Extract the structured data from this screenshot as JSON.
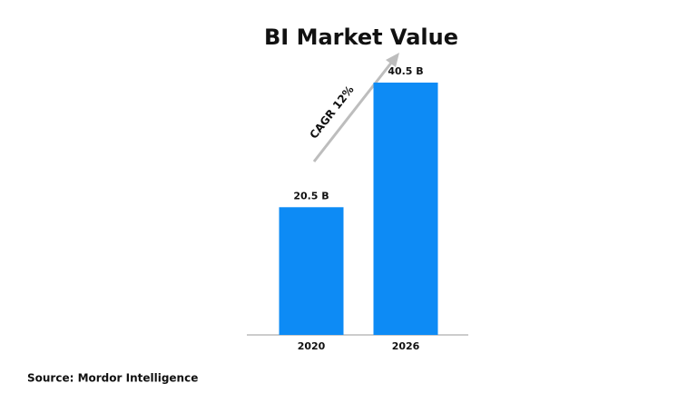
{
  "chart_data": {
    "type": "bar",
    "title": "BI Market Value",
    "categories": [
      "2020",
      "2026"
    ],
    "values": [
      20.5,
      40.5
    ],
    "value_labels": [
      "20.5 B",
      "40.5 B"
    ],
    "color": "#0d8bf5",
    "annotation": "CAGR 12%",
    "source": "Source: Mordor Intelligence"
  }
}
